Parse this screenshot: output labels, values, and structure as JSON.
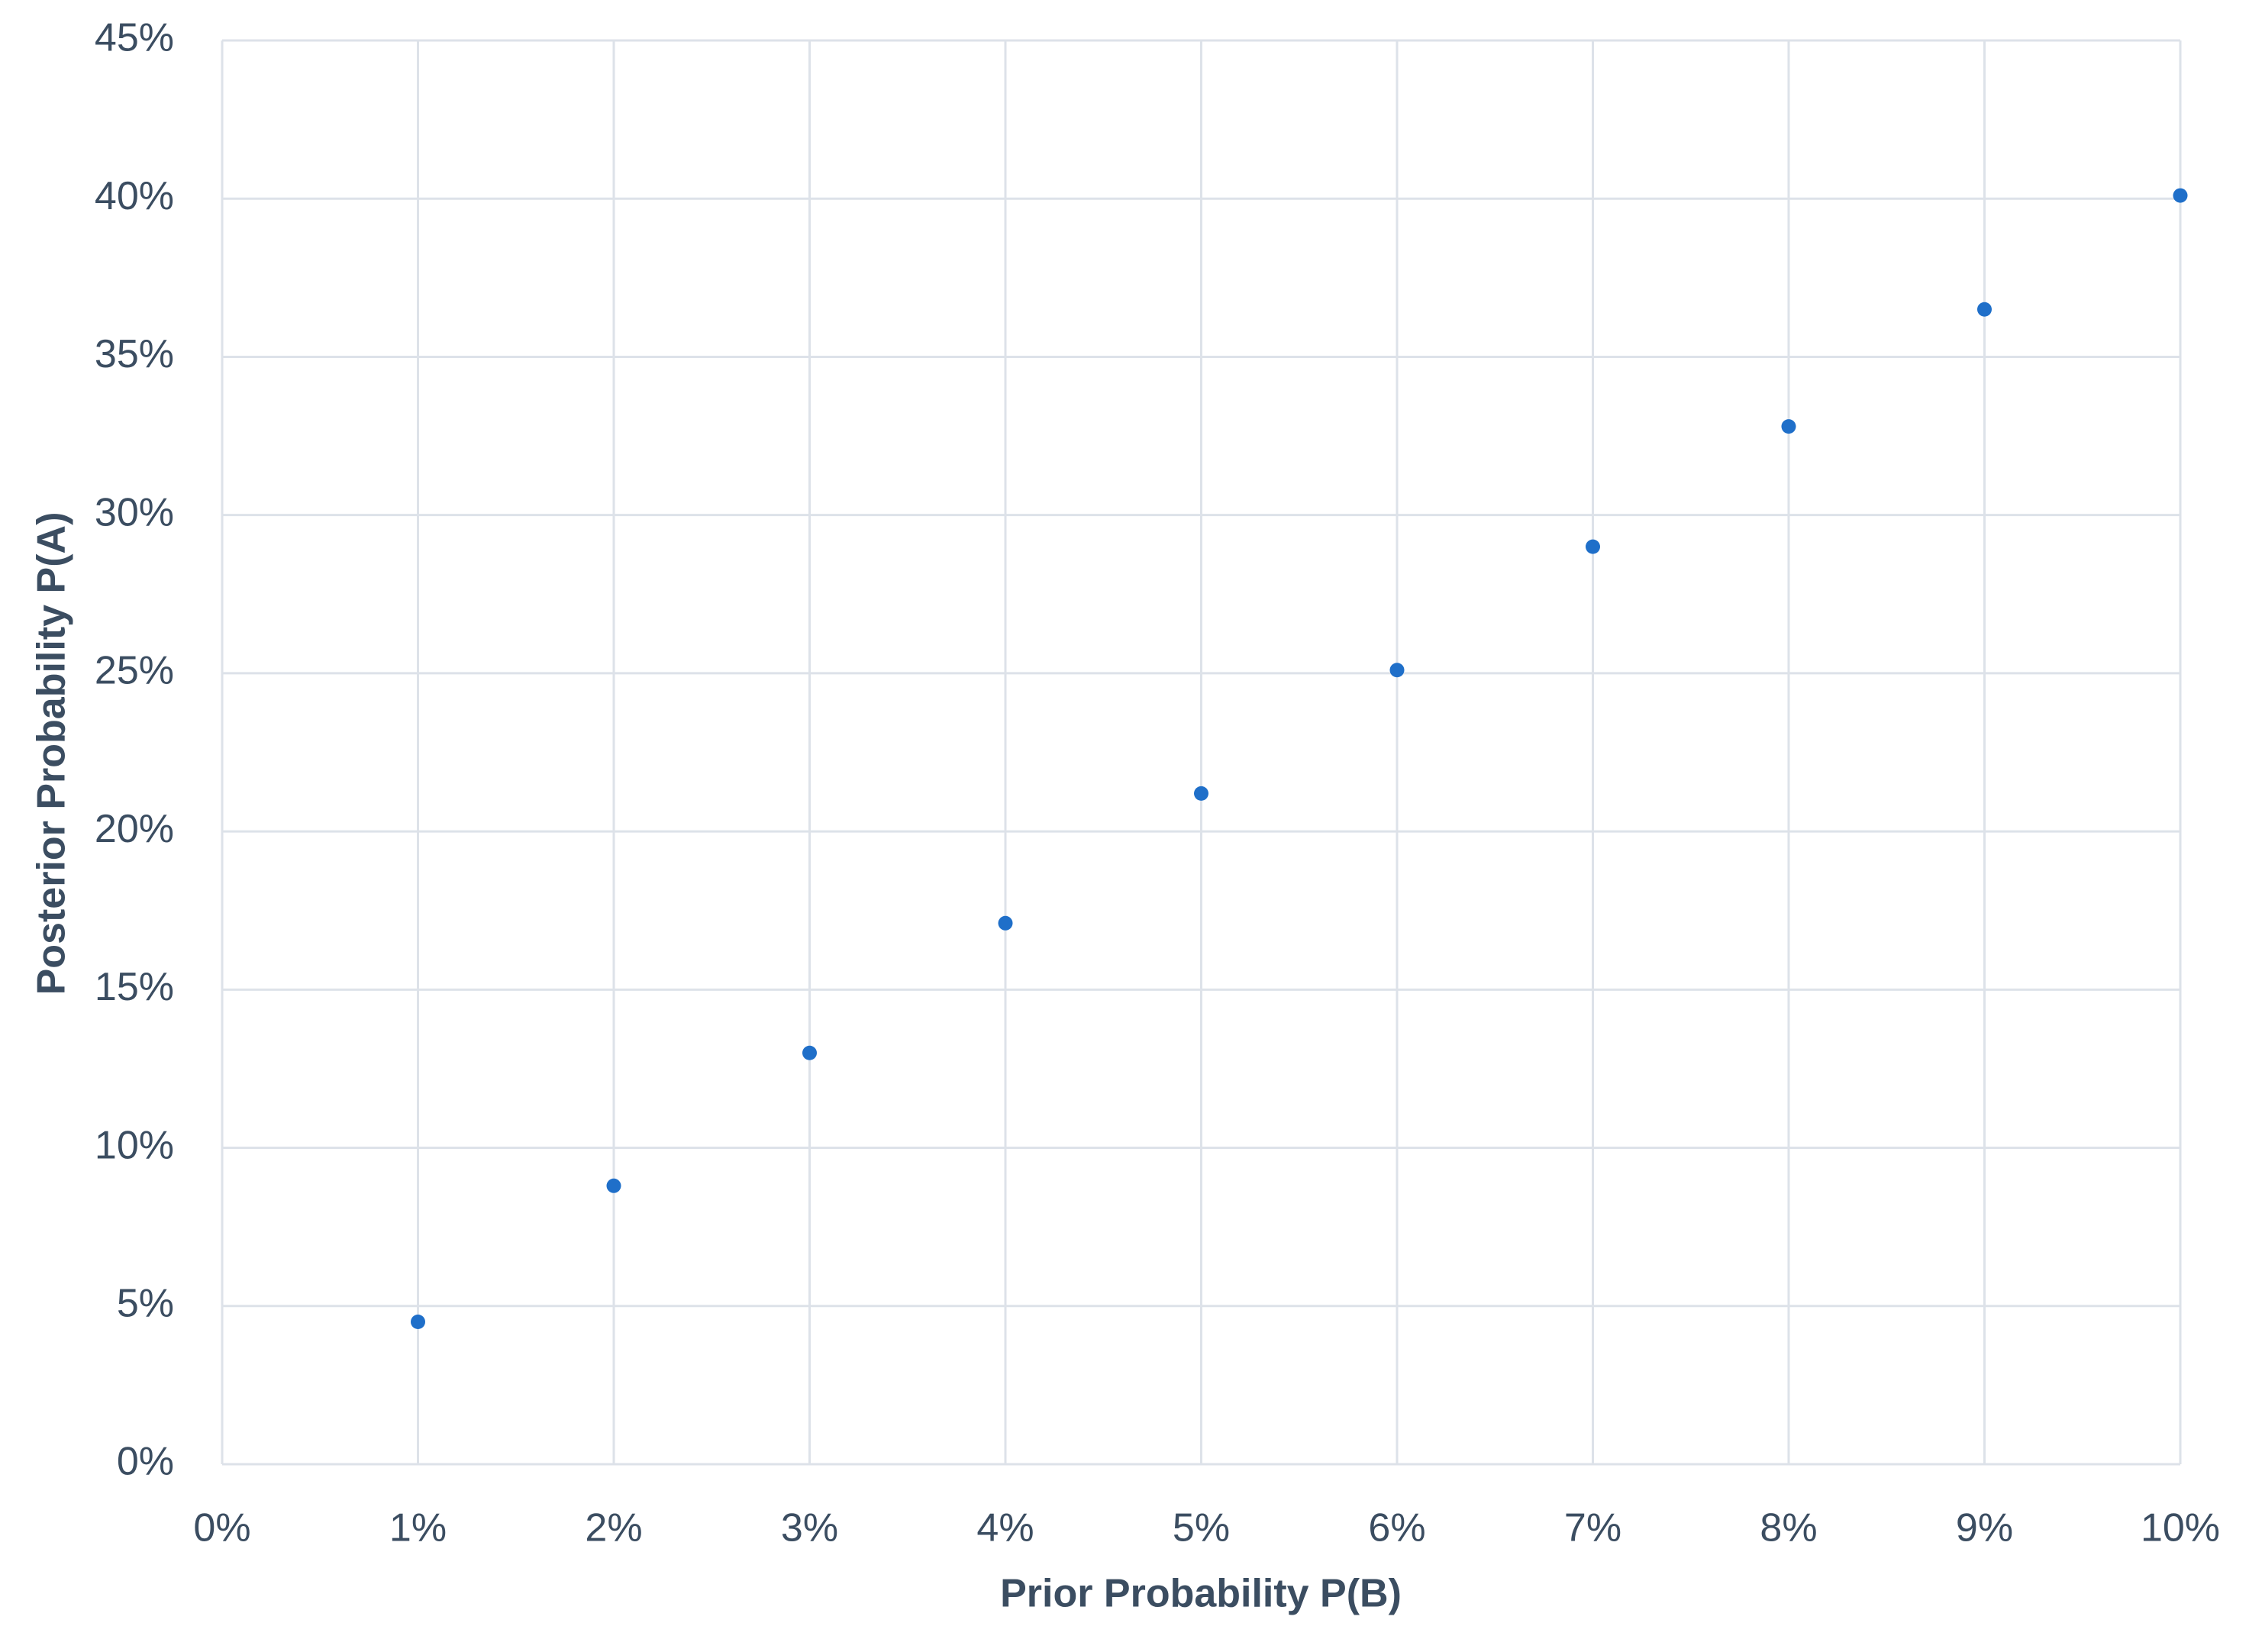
{
  "chart_data": {
    "type": "scatter",
    "x_label": "Prior Probability P(B)",
    "y_label": "Posterior Probability P(A)",
    "series": [
      {
        "color": "#1f6fc9",
        "x": [
          1,
          2,
          3,
          4,
          5,
          6,
          7,
          8,
          9,
          10
        ],
        "values": [
          4.5,
          8.8,
          13.0,
          17.1,
          21.2,
          25.1,
          29.0,
          32.8,
          36.5,
          40.1
        ]
      }
    ],
    "xlim": [
      0,
      10
    ],
    "xticks": [
      {
        "value": 0,
        "label": "0%"
      },
      {
        "value": 1,
        "label": "1%"
      },
      {
        "value": 2,
        "label": "2%"
      },
      {
        "value": 3,
        "label": "3%"
      },
      {
        "value": 4,
        "label": "4%"
      },
      {
        "value": 5,
        "label": "5%"
      },
      {
        "value": 6,
        "label": "6%"
      },
      {
        "value": 7,
        "label": "7%"
      },
      {
        "value": 8,
        "label": "8%"
      },
      {
        "value": 9,
        "label": "9%"
      },
      {
        "value": 10,
        "label": "10%"
      }
    ],
    "ylim": [
      0,
      45
    ],
    "yticks": [
      {
        "value": 0,
        "label": "0%"
      },
      {
        "value": 5,
        "label": "5%"
      },
      {
        "value": 10,
        "label": "10%"
      },
      {
        "value": 15,
        "label": "15%"
      },
      {
        "value": 20,
        "label": "20%"
      },
      {
        "value": 25,
        "label": "25%"
      },
      {
        "value": 30,
        "label": "30%"
      },
      {
        "value": 35,
        "label": "35%"
      },
      {
        "value": 40,
        "label": "40%"
      },
      {
        "value": 45,
        "label": "45%"
      }
    ],
    "grid": true
  }
}
